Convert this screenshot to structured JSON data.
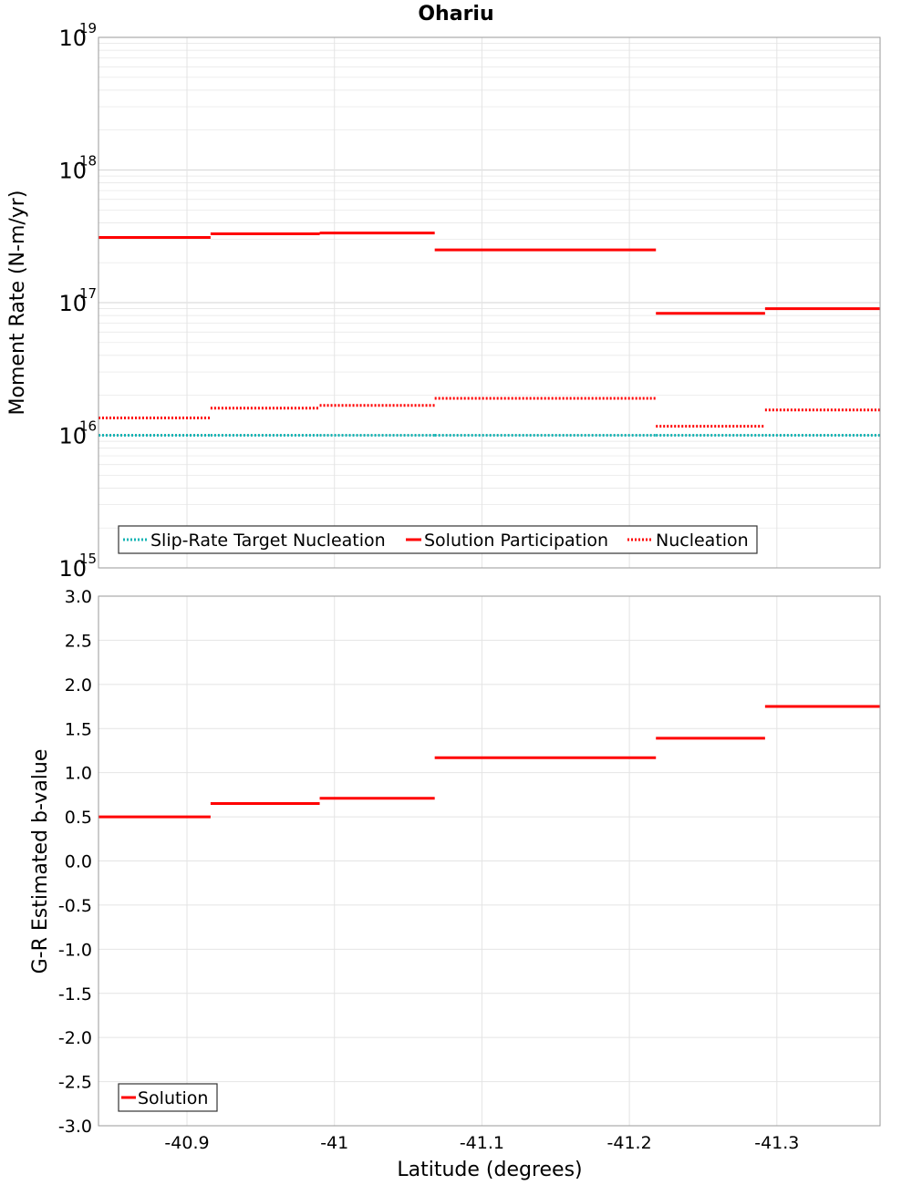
{
  "colors": {
    "solution": "#ff0000",
    "nucleation": "#ff0000",
    "target": "#14b4b4",
    "grid": "#e4e4e4",
    "frame": "#9a9a9a"
  },
  "chart_data": [
    {
      "type": "line",
      "title": "Ohariu",
      "ylabel": "Moment Rate (N-m/yr)",
      "xlabel": "",
      "yscale": "log",
      "ylim_exp": [
        15,
        19
      ],
      "y_ticks": [
        {
          "base": "10",
          "exp": "19"
        },
        {
          "base": "10",
          "exp": "18"
        },
        {
          "base": "10",
          "exp": "17"
        },
        {
          "base": "10",
          "exp": "16"
        },
        {
          "base": "10",
          "exp": "15"
        }
      ],
      "xlim": [
        -40.84,
        -41.37
      ],
      "x_ticks": [
        "-40.9",
        "-41",
        "-41.1",
        "-41.2",
        "-41.3"
      ],
      "x_tick_values": [
        -40.9,
        -41.0,
        -41.1,
        -41.2,
        -41.3
      ],
      "legend": [
        "Slip-Rate Target Nucleation",
        "Solution Participation",
        "Nucleation"
      ],
      "segments_x": [
        [
          -40.84,
          -40.916
        ],
        [
          -40.916,
          -40.99
        ],
        [
          -40.99,
          -41.068
        ],
        [
          -41.068,
          -41.218
        ],
        [
          -41.218,
          -41.292
        ],
        [
          -41.292,
          -41.37
        ]
      ],
      "series": [
        {
          "name": "Slip-Rate Target Nucleation",
          "style": "dotted",
          "color": "#14b4b4",
          "values": [
            1e+16,
            1e+16,
            1e+16,
            1e+16,
            1e+16,
            1e+16
          ]
        },
        {
          "name": "Solution Participation",
          "style": "solid",
          "color": "#ff0000",
          "values": [
            3.1e+17,
            3.3e+17,
            3.35e+17,
            2.5e+17,
            8.3e+16,
            9e+16
          ]
        },
        {
          "name": "Nucleation",
          "style": "dotted",
          "color": "#ff0000",
          "values": [
            1.35e+16,
            1.6e+16,
            1.68e+16,
            1.9e+16,
            1.17e+16,
            1.55e+16
          ]
        }
      ]
    },
    {
      "type": "line",
      "title": "",
      "ylabel": "G-R Estimated b-value",
      "xlabel": "Latitude (degrees)",
      "ylim": [
        -3.0,
        3.0
      ],
      "y_ticks": [
        "3.0",
        "2.5",
        "2.0",
        "1.5",
        "1.0",
        "0.5",
        "0.0",
        "-0.5",
        "-1.0",
        "-1.5",
        "-2.0",
        "-2.5",
        "-3.0"
      ],
      "xlim": [
        -40.84,
        -41.37
      ],
      "x_ticks": [
        "-40.9",
        "-41",
        "-41.1",
        "-41.2",
        "-41.3"
      ],
      "x_tick_values": [
        -40.9,
        -41.0,
        -41.1,
        -41.2,
        -41.3
      ],
      "legend": [
        "Solution"
      ],
      "segments_x": [
        [
          -40.84,
          -40.916
        ],
        [
          -40.916,
          -40.99
        ],
        [
          -40.99,
          -41.068
        ],
        [
          -41.068,
          -41.218
        ],
        [
          -41.218,
          -41.292
        ],
        [
          -41.292,
          -41.37
        ]
      ],
      "series": [
        {
          "name": "Solution",
          "style": "solid",
          "color": "#ff0000",
          "values": [
            0.5,
            0.65,
            0.71,
            1.17,
            1.39,
            1.75
          ]
        }
      ]
    }
  ]
}
